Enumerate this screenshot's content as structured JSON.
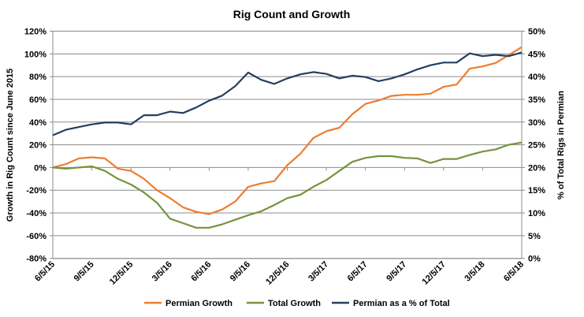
{
  "chart_data": {
    "type": "line",
    "title": "Rig Count and Growth",
    "ylabel": "Growth in Rig Count since June 2015",
    "y2label": "% of Total Rigs in Permian",
    "xlabel": "",
    "ylim": [
      -80,
      120
    ],
    "y2lim": [
      0,
      50
    ],
    "yticks": [
      "-80%",
      "-60%",
      "-40%",
      "-20%",
      "0%",
      "20%",
      "40%",
      "60%",
      "80%",
      "100%",
      "120%"
    ],
    "y2ticks": [
      "0%",
      "5%",
      "10%",
      "15%",
      "20%",
      "25%",
      "30%",
      "35%",
      "40%",
      "45%",
      "50%"
    ],
    "xticks": [
      "6/5/15",
      "9/5/15",
      "12/5/15",
      "3/5/16",
      "6/5/16",
      "9/5/16",
      "12/5/16",
      "3/5/17",
      "6/5/17",
      "9/5/17",
      "12/5/17",
      "3/5/18",
      "6/5/18"
    ],
    "x": [
      "6/5/15",
      "7/5/15",
      "8/5/15",
      "9/5/15",
      "10/5/15",
      "11/5/15",
      "12/5/15",
      "1/5/16",
      "2/5/16",
      "3/5/16",
      "4/5/16",
      "5/5/16",
      "6/5/16",
      "7/5/16",
      "8/5/16",
      "9/5/16",
      "10/5/16",
      "11/5/16",
      "12/5/16",
      "1/5/17",
      "2/5/17",
      "3/5/17",
      "4/5/17",
      "5/5/17",
      "6/5/17",
      "7/5/17",
      "8/5/17",
      "9/5/17",
      "10/5/17",
      "11/5/17",
      "12/5/17",
      "1/5/18",
      "2/5/18",
      "3/5/18",
      "4/5/18",
      "5/5/18",
      "6/5/18"
    ],
    "grid": true,
    "legend": "bottom",
    "series": [
      {
        "name": "Permian Growth",
        "axis": "left",
        "color": "#ED7D31",
        "values": [
          0,
          3,
          8,
          9,
          8,
          -1,
          -3,
          -10,
          -20,
          -27,
          -35,
          -39,
          -41,
          -37,
          -30,
          -17,
          -14,
          -12,
          2,
          12,
          26,
          32,
          35,
          47,
          56,
          59,
          63,
          64,
          64,
          65,
          71,
          73,
          87,
          89,
          92,
          99,
          106
        ]
      },
      {
        "name": "Total Growth",
        "axis": "left",
        "color": "#77933C",
        "values": [
          0,
          -1,
          0,
          1,
          -3,
          -10,
          -15,
          -22,
          -31,
          -45,
          -49,
          -53,
          -53,
          -50,
          -46,
          -42,
          -38.5,
          -33,
          -27,
          -24,
          -17,
          -11,
          -3,
          5,
          8.5,
          10,
          10,
          8.5,
          8,
          4,
          7.5,
          7.5,
          11,
          14,
          16,
          20,
          22
        ]
      },
      {
        "name": "Permian as a % of Total",
        "axis": "right",
        "color": "#243F60",
        "values": [
          27.1,
          28.3,
          28.9,
          29.5,
          29.9,
          29.9,
          29.5,
          31.5,
          31.5,
          32.3,
          32,
          33.2,
          34.7,
          35.8,
          37.9,
          40.9,
          39.3,
          38.4,
          39.6,
          40.5,
          41,
          40.6,
          39.6,
          40.2,
          39.9,
          39,
          39.6,
          40.5,
          41.6,
          42.5,
          43.1,
          43.1,
          45.1,
          44.5,
          44.8,
          44.5,
          45.3
        ]
      }
    ]
  }
}
